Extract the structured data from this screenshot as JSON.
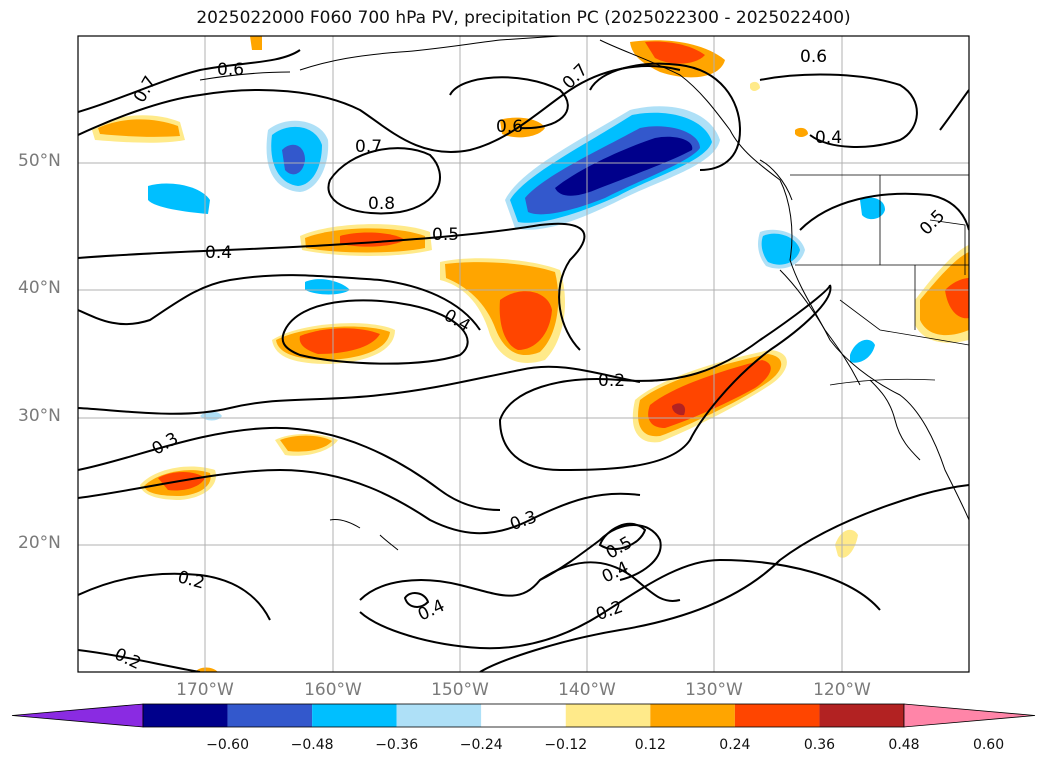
{
  "title": "2025022000 F060 700 hPa PV, precipitation PC (2025022300 - 2025022400)",
  "map": {
    "projection": "plate-carree",
    "lon_range": [
      -180,
      -110
    ],
    "lat_range": [
      10,
      60
    ],
    "lat_labels": [
      "50°N",
      "40°N",
      "30°N",
      "20°N"
    ],
    "lon_labels": [
      "170°W",
      "160°W",
      "150°W",
      "140°W",
      "130°W",
      "120°W"
    ],
    "contour_labels": [
      "0.6",
      "0.7",
      "0.7",
      "0.8",
      "0.6",
      "0.6",
      "0.7",
      "0.4",
      "0.4",
      "0.5",
      "0.4",
      "0.5",
      "0.2",
      "0.3",
      "0.3",
      "0.5",
      "0.4",
      "0.2",
      "0.2",
      "0.4",
      "0.2"
    ],
    "features": [
      "coastlines",
      "national borders",
      "state borders",
      "gridlines"
    ]
  },
  "colorbar": {
    "ticks": [
      "−0.60",
      "−0.48",
      "−0.36",
      "−0.24",
      "−0.12",
      "0.12",
      "0.24",
      "0.36",
      "0.48",
      "0.60"
    ],
    "colors": [
      "#8a2be2",
      "#00008b",
      "#3358cc",
      "#00bfff",
      "#aee0f7",
      "#ffffff",
      "#ffea8a",
      "#ffa500",
      "#ff4500",
      "#b22222",
      "#ff85a8"
    ],
    "extend": "both"
  }
}
